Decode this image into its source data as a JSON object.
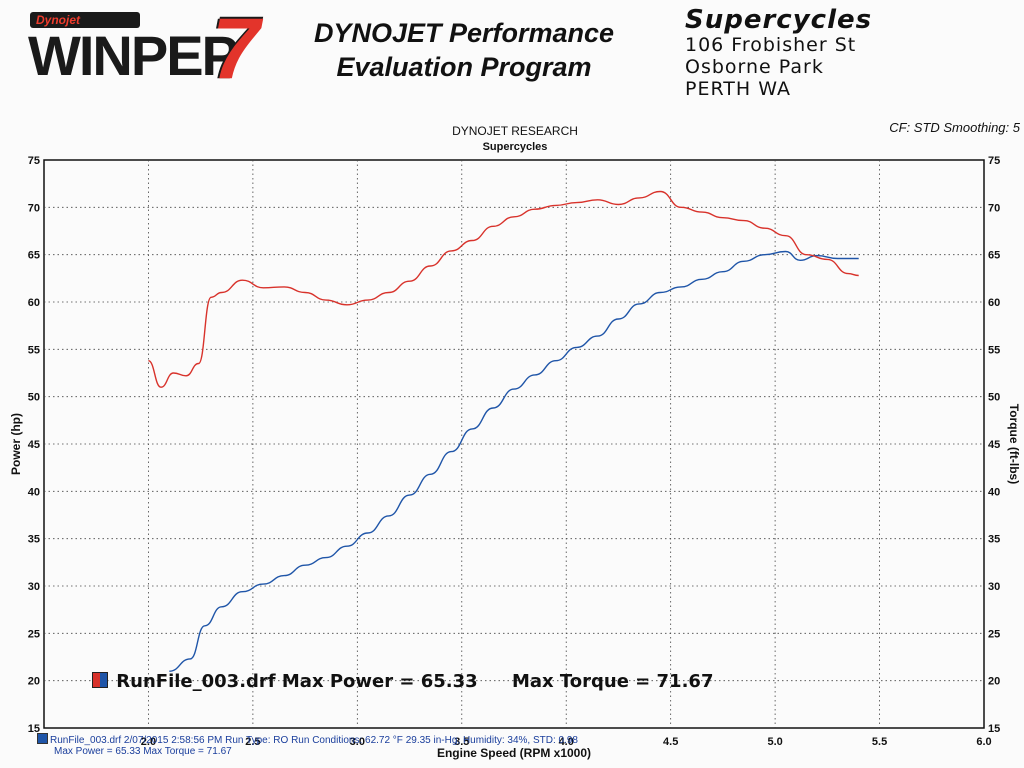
{
  "header": {
    "logo_top": "Dynojet",
    "logo_main": "WINPEP",
    "logo_seven": "7",
    "headline_1": "DYNOJET Performance",
    "headline_2": "Evaluation Program",
    "business_name": "Supercycles",
    "address_1": "106 Frobisher St",
    "address_2": "Osborne Park",
    "address_3": "PERTH WA"
  },
  "chart_header": {
    "line_1": "DYNOJET RESEARCH",
    "line_2": "Supercycles",
    "cf": "CF: STD  Smoothing: 5"
  },
  "run_label": {
    "file": "RunFile_003.drf Max Power = 65.33",
    "torque": "Max Torque = 71.67"
  },
  "legend": {
    "line_1": "RunFile_003.drf  2/07/2015 2:58:56 PM  Run Type: RO  Run Conditions: 62.72 °F 29.35 in-Hg,  Humidity: 34%, STD: 0.98",
    "line_2": "Max Power = 65.33  Max Torque = 71.67"
  },
  "colors": {
    "power": "#1f55a8",
    "torque": "#d8322b",
    "grid": "#444444"
  },
  "chart_data": {
    "type": "line",
    "xlabel": "Engine Speed (RPM x1000)",
    "ylabel": "Power (hp)",
    "y2label": "Torque (ft-lbs)",
    "xlim": [
      1.5,
      6.0
    ],
    "ylim": [
      15,
      75
    ],
    "y2lim": [
      15,
      75
    ],
    "x_ticks": [
      "2.0",
      "2.5",
      "3.0",
      "3.5",
      "4.0",
      "4.5",
      "5.0",
      "5.5",
      "6.0"
    ],
    "y_ticks": [
      "15",
      "20",
      "25",
      "30",
      "35",
      "40",
      "45",
      "50",
      "55",
      "60",
      "65",
      "70",
      "75"
    ],
    "grid": true,
    "series": [
      {
        "name": "Power",
        "axis": "left",
        "x": [
          2.1,
          2.2,
          2.27,
          2.35,
          2.45,
          2.55,
          2.65,
          2.75,
          2.85,
          2.95,
          3.05,
          3.15,
          3.25,
          3.35,
          3.45,
          3.55,
          3.65,
          3.75,
          3.85,
          3.95,
          4.05,
          4.15,
          4.25,
          4.35,
          4.45,
          4.55,
          4.65,
          4.75,
          4.85,
          4.95,
          5.05,
          5.12,
          5.2,
          5.3,
          5.4
        ],
        "values": [
          21,
          22.3,
          25.8,
          27.8,
          29.4,
          30.2,
          31.1,
          32.2,
          33.0,
          34.2,
          35.6,
          37.4,
          39.6,
          41.8,
          44.2,
          46.6,
          48.8,
          50.8,
          52.3,
          53.8,
          55.2,
          56.4,
          58.2,
          59.8,
          61.0,
          61.6,
          62.4,
          63.2,
          64.3,
          65.0,
          65.33,
          64.4,
          64.9,
          64.6,
          64.6
        ]
      },
      {
        "name": "Torque",
        "axis": "right",
        "x": [
          2.0,
          2.06,
          2.12,
          2.18,
          2.24,
          2.3,
          2.35,
          2.45,
          2.55,
          2.65,
          2.75,
          2.85,
          2.95,
          3.05,
          3.15,
          3.25,
          3.35,
          3.45,
          3.55,
          3.65,
          3.75,
          3.85,
          3.95,
          4.05,
          4.15,
          4.25,
          4.35,
          4.45,
          4.55,
          4.65,
          4.75,
          4.85,
          4.95,
          5.05,
          5.15,
          5.25,
          5.35,
          5.4
        ],
        "values": [
          53.8,
          51.0,
          52.5,
          52.2,
          53.5,
          60.5,
          61.0,
          62.3,
          61.5,
          61.6,
          61.0,
          60.2,
          59.7,
          60.2,
          61.0,
          62.2,
          63.8,
          65.4,
          66.5,
          68.0,
          69.0,
          69.8,
          70.2,
          70.5,
          70.8,
          70.3,
          71.0,
          71.67,
          70.0,
          69.5,
          68.9,
          68.6,
          67.8,
          67.0,
          65.0,
          64.5,
          63.0,
          62.8
        ]
      }
    ]
  }
}
